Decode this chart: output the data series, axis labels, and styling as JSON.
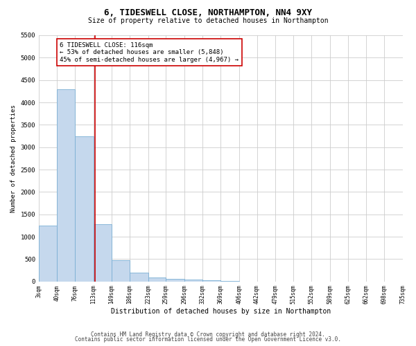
{
  "title": "6, TIDESWELL CLOSE, NORTHAMPTON, NN4 9XY",
  "subtitle": "Size of property relative to detached houses in Northampton",
  "xlabel": "Distribution of detached houses by size in Northampton",
  "ylabel": "Number of detached properties",
  "footer1": "Contains HM Land Registry data © Crown copyright and database right 2024.",
  "footer2": "Contains public sector information licensed under the Open Government Licence v3.0.",
  "annotation_line1": "6 TIDESWELL CLOSE: 116sqm",
  "annotation_line2": "← 53% of detached houses are smaller (5,848)",
  "annotation_line3": "45% of semi-detached houses are larger (4,967) →",
  "bar_color": "#c5d8ed",
  "bar_edge_color": "#7aafd4",
  "ref_line_color": "#cc0000",
  "ref_line_x": 116,
  "bin_edges": [
    3,
    40,
    76,
    113,
    149,
    186,
    223,
    259,
    296,
    332,
    369,
    406,
    442,
    479,
    515,
    552,
    589,
    625,
    662,
    698,
    735
  ],
  "bin_labels": [
    "3sqm",
    "40sqm",
    "76sqm",
    "113sqm",
    "149sqm",
    "186sqm",
    "223sqm",
    "259sqm",
    "296sqm",
    "332sqm",
    "369sqm",
    "406sqm",
    "442sqm",
    "479sqm",
    "515sqm",
    "552sqm",
    "589sqm",
    "625sqm",
    "662sqm",
    "698sqm",
    "735sqm"
  ],
  "bar_heights": [
    1250,
    4300,
    3250,
    1280,
    480,
    200,
    85,
    60,
    50,
    30,
    10,
    5,
    3,
    2,
    1,
    0,
    0,
    0,
    0,
    0
  ],
  "ylim": [
    0,
    5500
  ],
  "yticks": [
    0,
    500,
    1000,
    1500,
    2000,
    2500,
    3000,
    3500,
    4000,
    4500,
    5000,
    5500
  ],
  "background_color": "#ffffff",
  "grid_color": "#cccccc"
}
